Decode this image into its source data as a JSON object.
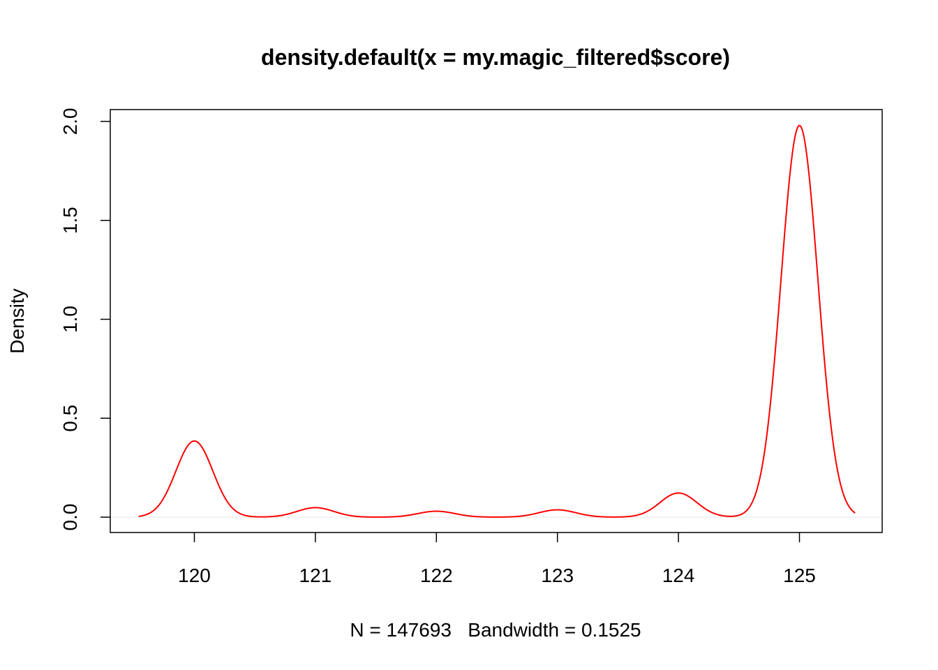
{
  "chart_data": {
    "type": "line",
    "title": "density.default(x = my.magic_filtered$score)",
    "xlabel": "N = 147693   Bandwidth = 0.1525",
    "ylabel": "Density",
    "xlim": [
      119.54,
      125.46
    ],
    "ylim": [
      0,
      2.0
    ],
    "x_ticks": [
      "120",
      "121",
      "122",
      "123",
      "124",
      "125"
    ],
    "y_ticks": [
      "0.0",
      "0.5",
      "1.0",
      "1.5",
      "2.0"
    ],
    "grid": false,
    "series": [
      {
        "color": "#ff0000",
        "bandwidth": 0.1525,
        "components": [
          {
            "x": 120,
            "peak": 0.385
          },
          {
            "x": 121,
            "peak": 0.048
          },
          {
            "x": 122,
            "peak": 0.03
          },
          {
            "x": 123,
            "peak": 0.037
          },
          {
            "x": 124,
            "peak": 0.122
          },
          {
            "x": 125,
            "peak": 1.98
          }
        ]
      }
    ],
    "zero_line_color": "#e6e6e6"
  }
}
